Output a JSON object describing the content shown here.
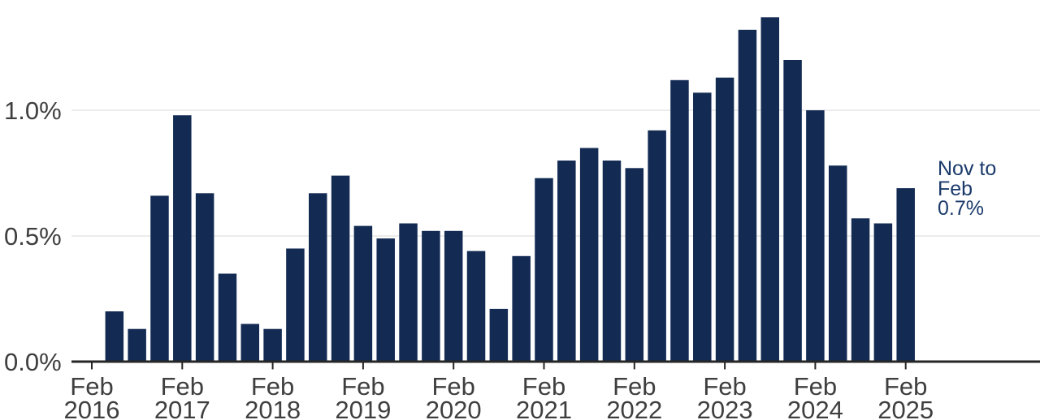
{
  "chart_data": {
    "type": "bar",
    "title": "",
    "unit": "%",
    "x": [
      "May 2016",
      "Aug 2016",
      "Nov 2016",
      "Feb 2017",
      "May 2017",
      "Aug 2017",
      "Nov 2017",
      "Feb 2018",
      "May 2018",
      "Aug 2018",
      "Nov 2018",
      "Feb 2019",
      "May 2019",
      "Aug 2019",
      "Nov 2019",
      "Feb 2020",
      "May 2020",
      "Aug 2020",
      "Nov 2020",
      "Feb 2021",
      "May 2021",
      "Aug 2021",
      "Nov 2021",
      "Feb 2022",
      "May 2022",
      "Aug 2022",
      "Nov 2022",
      "Feb 2023",
      "May 2023",
      "Aug 2023",
      "Nov 2023",
      "Feb 2024",
      "May 2024",
      "Aug 2024",
      "Nov 2024",
      "Feb 2025"
    ],
    "values": [
      0.2,
      0.13,
      0.66,
      0.98,
      0.67,
      0.35,
      0.15,
      0.13,
      0.45,
      0.67,
      0.74,
      0.54,
      0.49,
      0.55,
      0.52,
      0.52,
      0.44,
      0.21,
      0.42,
      0.73,
      0.8,
      0.85,
      0.8,
      0.77,
      0.92,
      1.12,
      1.07,
      1.13,
      1.32,
      1.37,
      1.2,
      1.0,
      0.78,
      0.57,
      0.55,
      0.69
    ],
    "x_tick_labels": [
      [
        "Feb",
        "2016"
      ],
      [
        "Feb",
        "2017"
      ],
      [
        "Feb",
        "2018"
      ],
      [
        "Feb",
        "2019"
      ],
      [
        "Feb",
        "2020"
      ],
      [
        "Feb",
        "2021"
      ],
      [
        "Feb",
        "2022"
      ],
      [
        "Feb",
        "2023"
      ],
      [
        "Feb",
        "2024"
      ],
      [
        "Feb",
        "2025"
      ]
    ],
    "y_ticks": [
      {
        "value": 0,
        "label": "0.0%"
      },
      {
        "value": 0.5,
        "label": "0.5%"
      },
      {
        "value": 1,
        "label": "1.0%"
      }
    ],
    "ylim": [
      0,
      1.44
    ],
    "grid": "horizontal",
    "legend": "none",
    "annotation": {
      "lines": [
        "Nov to",
        "Feb",
        "0.7%"
      ]
    },
    "colors": {
      "bar": "#132B53",
      "annotation_text": "#1A3A6B",
      "axis_text": "#3F3F3F",
      "gridline": "#ECECEC",
      "axis_line": "#262626",
      "background": "#FFFFFF"
    }
  }
}
